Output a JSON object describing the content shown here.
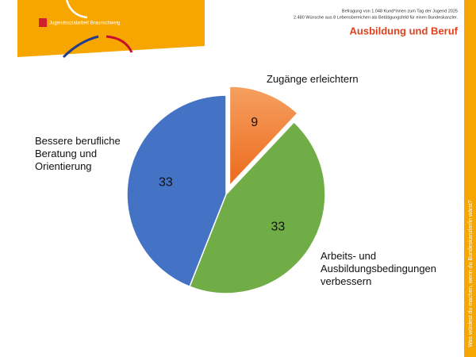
{
  "header": {
    "organization": "Jugendsozialarbeit Braunschweig",
    "survey_line_1": "Befragung von 1.048 Kund*innen zum Tag der Jugend 2025",
    "survey_line_2": "2.480 Wünsche aus 8 Lebensbereichen als Betätigungsfeld für einen Bundeskanzler.",
    "side_text": "Was würdest du machen, wenn du Bundeskanzler/in wärst?"
  },
  "chart_data": {
    "type": "pie",
    "title": "Ausbildung und Beruf",
    "categories": [
      "Zugänge erleichtern",
      "Arbeits- und Ausbildungsbedingungen verbessern",
      "Bessere berufliche Beratung und Orientierung"
    ],
    "values": [
      9,
      33,
      33
    ],
    "colors": [
      "#f07a30",
      "#70ad47",
      "#4472c4"
    ]
  }
}
